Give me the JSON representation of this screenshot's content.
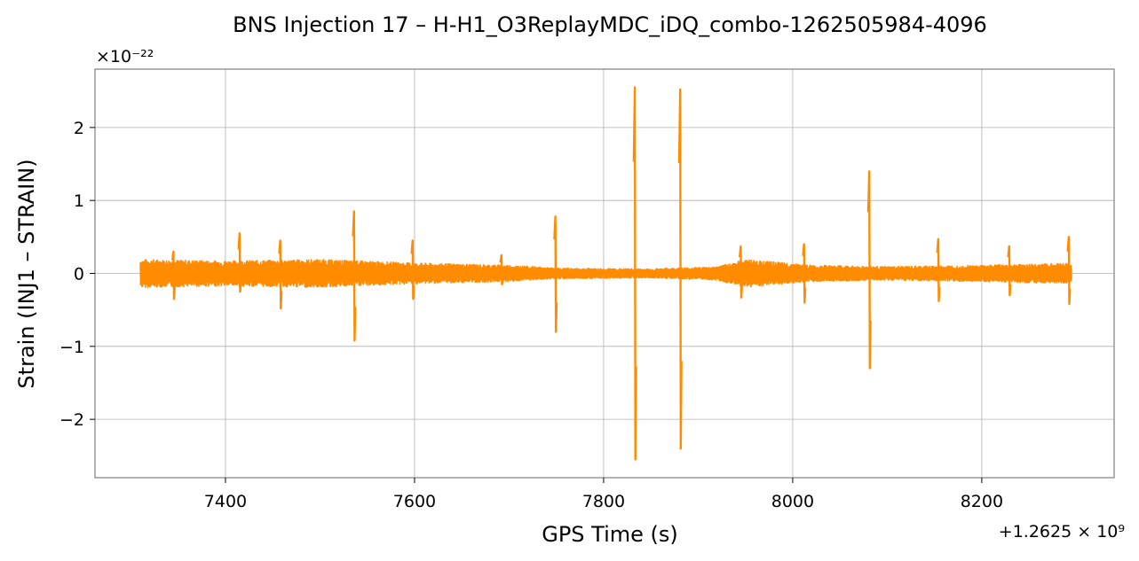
{
  "chart_data": {
    "type": "line",
    "title": "BNS Injection 17 – H-H1_O3ReplayMDC_iDQ_combo-1262505984-4096",
    "xlabel": "GPS Time (s)",
    "ylabel": "Strain (INJ1 – STRAIN)",
    "x_offset_label": "+1.2625 × 10⁹",
    "y_scale_label": "×10⁻²²",
    "xlim": [
      7262,
      8340
    ],
    "ylim": [
      -2.8,
      2.8
    ],
    "xticks": [
      7400,
      7600,
      7800,
      8000,
      8200
    ],
    "xtick_labels": [
      "7400",
      "7600",
      "7800",
      "8000",
      "8200"
    ],
    "yticks": [
      -2,
      -1,
      0,
      1,
      2
    ],
    "ytick_labels": [
      "−2",
      "−1",
      "0",
      "1",
      "2"
    ],
    "grid": true,
    "series": [
      {
        "color": "#ff8c00",
        "x_range": [
          7310,
          8295
        ],
        "envelope": [
          {
            "x": 7310,
            "upper": 0.2,
            "lower": -0.2
          },
          {
            "x": 7400,
            "upper": 0.18,
            "lower": -0.18
          },
          {
            "x": 7500,
            "upper": 0.2,
            "lower": -0.2
          },
          {
            "x": 7600,
            "upper": 0.15,
            "lower": -0.15
          },
          {
            "x": 7700,
            "upper": 0.12,
            "lower": -0.12
          },
          {
            "x": 7750,
            "upper": 0.08,
            "lower": -0.08
          },
          {
            "x": 7850,
            "upper": 0.07,
            "lower": -0.07
          },
          {
            "x": 7920,
            "upper": 0.1,
            "lower": -0.1
          },
          {
            "x": 7950,
            "upper": 0.2,
            "lower": -0.2
          },
          {
            "x": 8020,
            "upper": 0.12,
            "lower": -0.12
          },
          {
            "x": 8100,
            "upper": 0.1,
            "lower": -0.1
          },
          {
            "x": 8200,
            "upper": 0.12,
            "lower": -0.12
          },
          {
            "x": 8295,
            "upper": 0.15,
            "lower": -0.15
          }
        ],
        "spikes": [
          {
            "x": 7345,
            "max": 0.3,
            "min": -0.35
          },
          {
            "x": 7415,
            "max": 0.55,
            "min": -0.25
          },
          {
            "x": 7458,
            "max": 0.45,
            "min": -0.48
          },
          {
            "x": 7536,
            "max": 0.85,
            "min": -0.92
          },
          {
            "x": 7598,
            "max": 0.45,
            "min": -0.35
          },
          {
            "x": 7692,
            "max": 0.25,
            "min": -0.15
          },
          {
            "x": 7749,
            "max": 0.78,
            "min": -0.8
          },
          {
            "x": 7833,
            "max": 2.55,
            "min": -2.55
          },
          {
            "x": 7881,
            "max": 2.52,
            "min": -2.4
          },
          {
            "x": 7945,
            "max": 0.37,
            "min": -0.33
          },
          {
            "x": 8012,
            "max": 0.4,
            "min": -0.4
          },
          {
            "x": 8081,
            "max": 1.4,
            "min": -1.3
          },
          {
            "x": 8154,
            "max": 0.47,
            "min": -0.38
          },
          {
            "x": 8229,
            "max": 0.37,
            "min": -0.3
          },
          {
            "x": 8292,
            "max": 0.5,
            "min": -0.42
          }
        ]
      }
    ]
  }
}
